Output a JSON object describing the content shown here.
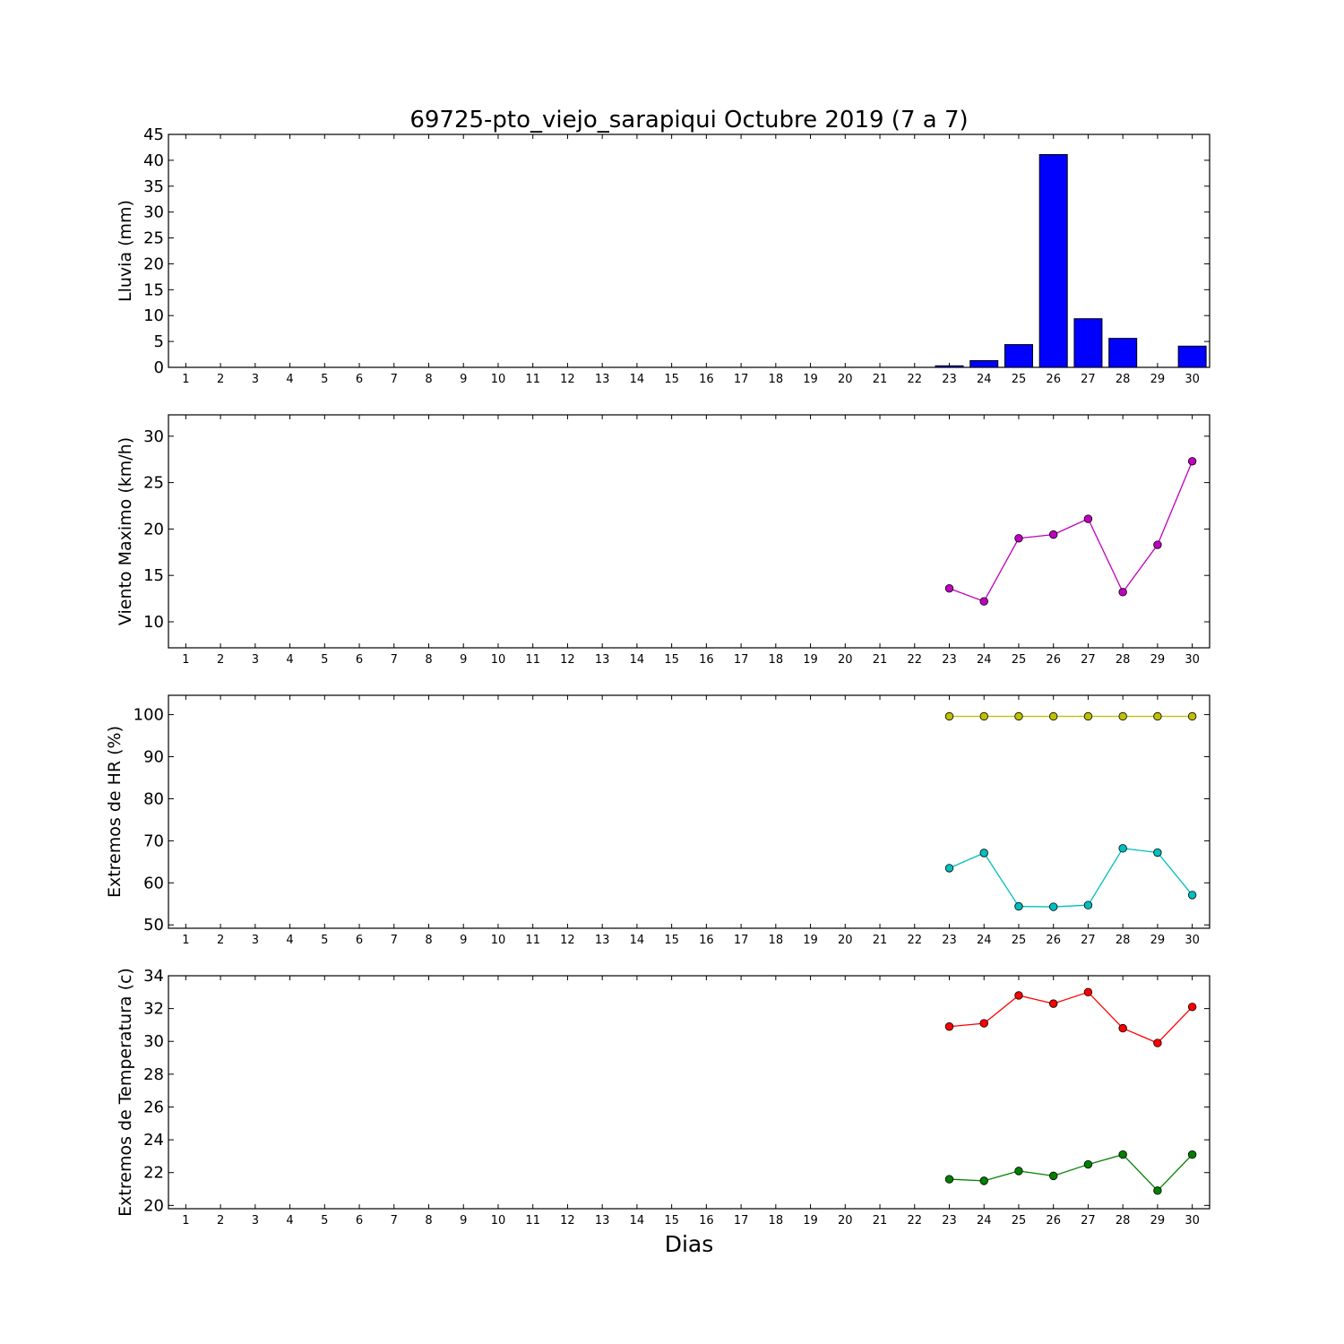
{
  "title": "69725-pto_viejo_sarapiqui Octubre 2019  (7 a 7)",
  "xlabel": "Dias",
  "chart_data": [
    {
      "type": "bar",
      "ylabel": "Lluvia (mm)",
      "xlim": [
        0.5,
        30.5
      ],
      "ylim": [
        0,
        45
      ],
      "yticks": [
        0,
        5,
        10,
        15,
        20,
        25,
        30,
        35,
        40,
        45
      ],
      "categories": [
        1,
        2,
        3,
        4,
        5,
        6,
        7,
        8,
        9,
        10,
        11,
        12,
        13,
        14,
        15,
        16,
        17,
        18,
        19,
        20,
        21,
        22,
        23,
        24,
        25,
        26,
        27,
        28,
        29,
        30
      ],
      "series": [
        {
          "color": "#0000ff",
          "x": [
            23,
            24,
            25,
            26,
            27,
            28,
            29,
            30
          ],
          "values": [
            0.3,
            1.3,
            4.4,
            41.1,
            9.4,
            5.6,
            0.0,
            4.1
          ]
        }
      ],
      "grid": false
    },
    {
      "type": "line",
      "ylabel": "Viento Maximo (km/h)",
      "xlim": [
        0.5,
        30.5
      ],
      "ylim": [
        7.2,
        32.3
      ],
      "yticks": [
        10,
        15,
        20,
        25,
        30
      ],
      "categories": [
        1,
        2,
        3,
        4,
        5,
        6,
        7,
        8,
        9,
        10,
        11,
        12,
        13,
        14,
        15,
        16,
        17,
        18,
        19,
        20,
        21,
        22,
        23,
        24,
        25,
        26,
        27,
        28,
        29,
        30
      ],
      "series": [
        {
          "color": "#bf00bf",
          "x": [
            23,
            24,
            25,
            26,
            27,
            28,
            29,
            30
          ],
          "values": [
            13.6,
            12.2,
            19.0,
            19.4,
            21.1,
            13.2,
            18.3,
            27.3
          ]
        }
      ],
      "grid": false
    },
    {
      "type": "line",
      "ylabel": "Extremos de HR (%)",
      "xlim": [
        0.5,
        30.5
      ],
      "ylim": [
        49.2,
        104.6
      ],
      "yticks": [
        50,
        60,
        70,
        80,
        90,
        100
      ],
      "categories": [
        1,
        2,
        3,
        4,
        5,
        6,
        7,
        8,
        9,
        10,
        11,
        12,
        13,
        14,
        15,
        16,
        17,
        18,
        19,
        20,
        21,
        22,
        23,
        24,
        25,
        26,
        27,
        28,
        29,
        30
      ],
      "series": [
        {
          "color": "#bfbf00",
          "x": [
            23,
            24,
            25,
            26,
            27,
            28,
            29,
            30
          ],
          "values": [
            99.6,
            99.6,
            99.6,
            99.6,
            99.6,
            99.6,
            99.6,
            99.6
          ]
        },
        {
          "color": "#00bfbf",
          "x": [
            23,
            24,
            25,
            26,
            27,
            28,
            29,
            30
          ],
          "values": [
            63.5,
            67.1,
            54.4,
            54.3,
            54.7,
            68.2,
            67.2,
            57.1
          ]
        }
      ],
      "grid": false
    },
    {
      "type": "line",
      "ylabel": "Extremos de Temperatura (c)",
      "xlim": [
        0.5,
        30.5
      ],
      "ylim": [
        19.8,
        34.0
      ],
      "yticks": [
        20,
        22,
        24,
        26,
        28,
        30,
        32,
        34
      ],
      "categories": [
        1,
        2,
        3,
        4,
        5,
        6,
        7,
        8,
        9,
        10,
        11,
        12,
        13,
        14,
        15,
        16,
        17,
        18,
        19,
        20,
        21,
        22,
        23,
        24,
        25,
        26,
        27,
        28,
        29,
        30
      ],
      "series": [
        {
          "color": "#ff0000",
          "x": [
            23,
            24,
            25,
            26,
            27,
            28,
            29,
            30
          ],
          "values": [
            30.9,
            31.1,
            32.8,
            32.3,
            33.0,
            30.8,
            29.9,
            32.1
          ]
        },
        {
          "color": "#008000",
          "x": [
            23,
            24,
            25,
            26,
            27,
            28,
            29,
            30
          ],
          "values": [
            21.6,
            21.5,
            22.1,
            21.8,
            22.5,
            23.1,
            20.9,
            23.1
          ]
        }
      ],
      "grid": false
    }
  ]
}
